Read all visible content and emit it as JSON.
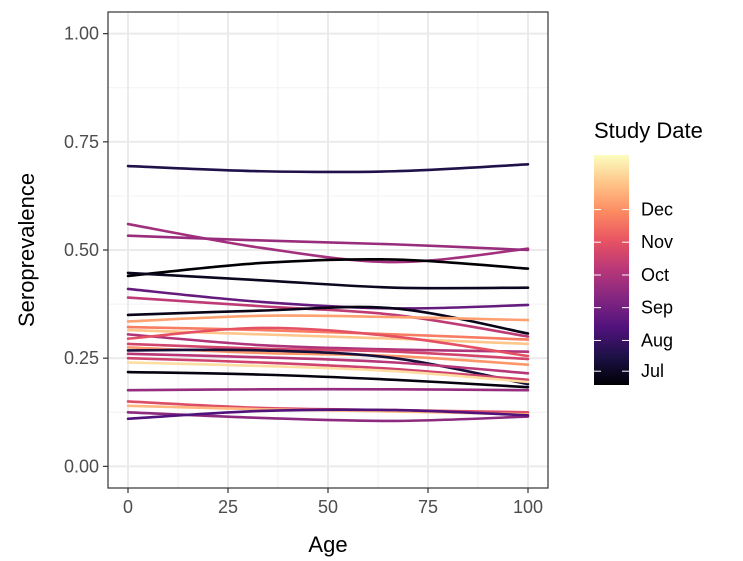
{
  "chart_data": {
    "type": "line",
    "xlabel": "Age",
    "ylabel": "Seroprevalence",
    "xlim": [
      -5,
      105
    ],
    "ylim": [
      -0.05,
      1.05
    ],
    "x_ticks": [
      0,
      25,
      50,
      75,
      100
    ],
    "x_tick_labels": [
      "0",
      "25",
      "50",
      "75",
      "100"
    ],
    "y_ticks": [
      0,
      0.25,
      0.5,
      0.75,
      1.0
    ],
    "y_tick_labels": [
      "0.00",
      "0.25",
      "0.50",
      "0.75",
      "1.00"
    ],
    "grid": true,
    "theme": "bw",
    "legend": {
      "title": "Study Date",
      "placement": "right",
      "type": "colorbar",
      "palette": "magma",
      "labels": [
        "Dec",
        "Nov",
        "Oct",
        "Sep",
        "Aug",
        "Jul"
      ],
      "label_positions": [
        0.857,
        0.684,
        0.51,
        0.337,
        0.163,
        0.0
      ],
      "stops": [
        "#000004",
        "#1d1147",
        "#51127c",
        "#822681",
        "#b73779",
        "#e75263",
        "#fc8961",
        "#fec488",
        "#fcfdbf"
      ]
    },
    "series": [
      {
        "values": [
          0.694,
          0.682,
          0.682,
          0.698
        ],
        "color_value": 0.13
      },
      {
        "values": [
          0.56,
          0.505,
          0.472,
          0.503
        ],
        "color_value": 0.45
      },
      {
        "values": [
          0.533,
          0.522,
          0.513,
          0.5
        ],
        "color_value": 0.43
      },
      {
        "values": [
          0.44,
          0.47,
          0.478,
          0.457
        ],
        "color_value": 0.0
      },
      {
        "values": [
          0.447,
          0.43,
          0.413,
          0.413
        ],
        "color_value": 0.05
      },
      {
        "values": [
          0.41,
          0.38,
          0.365,
          0.373
        ],
        "color_value": 0.3
      },
      {
        "values": [
          0.39,
          0.37,
          0.35,
          0.3
        ],
        "color_value": 0.52
      },
      {
        "values": [
          0.35,
          0.36,
          0.365,
          0.307
        ],
        "color_value": 0.04
      },
      {
        "values": [
          0.335,
          0.348,
          0.345,
          0.338
        ],
        "color_value": 0.8
      },
      {
        "values": [
          0.322,
          0.315,
          0.305,
          0.293
        ],
        "color_value": 0.72
      },
      {
        "values": [
          0.315,
          0.305,
          0.295,
          0.283
        ],
        "color_value": 0.88
      },
      {
        "values": [
          0.305,
          0.28,
          0.27,
          0.265
        ],
        "color_value": 0.48
      },
      {
        "values": [
          0.295,
          0.32,
          0.3,
          0.255
        ],
        "color_value": 0.62
      },
      {
        "values": [
          0.283,
          0.272,
          0.265,
          0.248
        ],
        "color_value": 0.57
      },
      {
        "values": [
          0.275,
          0.262,
          0.255,
          0.235
        ],
        "color_value": 0.78
      },
      {
        "values": [
          0.268,
          0.268,
          0.25,
          0.19
        ],
        "color_value": 0.1
      },
      {
        "values": [
          0.26,
          0.252,
          0.24,
          0.215
        ],
        "color_value": 0.5
      },
      {
        "values": [
          0.25,
          0.24,
          0.225,
          0.2
        ],
        "color_value": 0.56
      },
      {
        "values": [
          0.24,
          0.232,
          0.22,
          0.195
        ],
        "color_value": 0.93
      },
      {
        "values": [
          0.218,
          0.212,
          0.2,
          0.183
        ],
        "color_value": 0.02
      },
      {
        "values": [
          0.176,
          0.178,
          0.178,
          0.176
        ],
        "color_value": 0.42
      },
      {
        "values": [
          0.15,
          0.135,
          0.13,
          0.125
        ],
        "color_value": 0.6
      },
      {
        "values": [
          0.14,
          0.132,
          0.127,
          0.12
        ],
        "color_value": 0.85
      },
      {
        "values": [
          0.125,
          0.112,
          0.105,
          0.115
        ],
        "color_value": 0.4
      },
      {
        "values": [
          0.11,
          0.128,
          0.13,
          0.118
        ],
        "color_value": 0.25
      }
    ],
    "series_x": [
      0,
      33.3,
      66.7,
      100
    ]
  }
}
